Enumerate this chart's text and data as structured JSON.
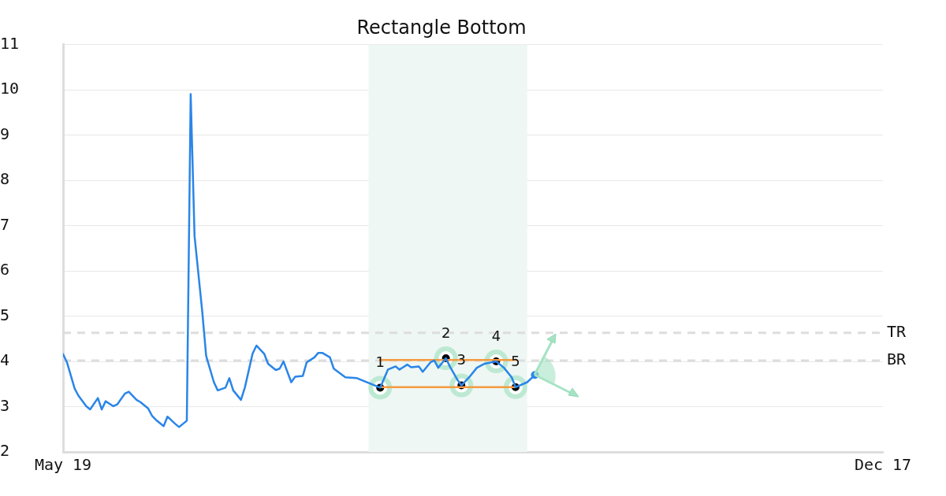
{
  "chart_data": {
    "type": "line",
    "title": "Rectangle Bottom",
    "xlim": [
      "--05-19",
      "--12-17"
    ],
    "xticks": [
      {
        "value": "--05-19",
        "label": "May 19"
      },
      {
        "value": "--12-17",
        "label": "Dec 17"
      }
    ],
    "ylim": [
      2,
      11
    ],
    "yticks": [
      2,
      3,
      4,
      5,
      6,
      7,
      8,
      9,
      10,
      11
    ],
    "grid": "y",
    "legend": false,
    "bands": [
      {
        "axis": "x",
        "from": "--08-06",
        "to": "--09-16",
        "color": "#eef7f3"
      }
    ],
    "ref_lines": [
      {
        "axis": "y",
        "value": 4.63,
        "label": "TR",
        "color": "#dddddd",
        "line_style": "dashed"
      },
      {
        "axis": "y",
        "value": 4.02,
        "label": "BR",
        "color": "#dddddd",
        "line_style": "dashed"
      }
    ],
    "annotations": [
      {
        "text": "1",
        "x": "--08-09",
        "y": 3.42
      },
      {
        "text": "2",
        "x": "--08-26",
        "y": 4.07
      },
      {
        "text": "3",
        "x": "--08-30",
        "y": 3.47
      },
      {
        "text": "4",
        "x": "--09-08",
        "y": 4.0
      },
      {
        "text": "5",
        "x": "--09-13",
        "y": 3.43
      }
    ],
    "series": [
      {
        "color": "#2a85e8",
        "marker": "none",
        "x": [
          "--05-19",
          "--05-20",
          "--05-22",
          "--05-23",
          "--05-25",
          "--05-26",
          "--05-28",
          "--05-29",
          "--05-30",
          "--06-01",
          "--06-02",
          "--06-04",
          "--06-05",
          "--06-07",
          "--06-08",
          "--06-10",
          "--06-11",
          "--06-12",
          "--06-14",
          "--06-15",
          "--06-17",
          "--06-18",
          "--06-20",
          "--06-21",
          "--06-22",
          "--06-24",
          "--06-25",
          "--06-27",
          "--06-28",
          "--06-30",
          "--07-01",
          "--07-02",
          "--07-04",
          "--07-05",
          "--07-07",
          "--07-08",
          "--07-10",
          "--07-11",
          "--07-13",
          "--07-14",
          "--07-15",
          "--07-17",
          "--07-18",
          "--07-20",
          "--07-21",
          "--07-23",
          "--07-24",
          "--07-25",
          "--07-27",
          "--07-28",
          "--07-31",
          "--08-03",
          "--08-05",
          "--08-07",
          "--08-09",
          "--08-11",
          "--08-13",
          "--08-14",
          "--08-16",
          "--08-17",
          "--08-19",
          "--08-20",
          "--08-22",
          "--08-23",
          "--08-24",
          "--08-26",
          "--08-27",
          "--08-29",
          "--08-30",
          "--09-01",
          "--09-03",
          "--09-05",
          "--09-08",
          "--09-10",
          "--09-12",
          "--09-13",
          "--09-16",
          "--09-18"
        ],
        "values": [
          4.16,
          3.98,
          3.4,
          3.24,
          3.01,
          2.94,
          3.19,
          2.94,
          3.12,
          3.01,
          3.05,
          3.29,
          3.33,
          3.15,
          3.1,
          2.96,
          2.8,
          2.71,
          2.57,
          2.78,
          2.62,
          2.55,
          2.69,
          9.91,
          6.77,
          5.09,
          4.12,
          3.54,
          3.36,
          3.42,
          3.63,
          3.36,
          3.15,
          3.42,
          4.17,
          4.35,
          4.17,
          3.95,
          3.81,
          3.84,
          4.0,
          3.54,
          3.66,
          3.68,
          3.98,
          4.09,
          4.19,
          4.19,
          4.09,
          3.84,
          3.65,
          3.63,
          3.56,
          3.49,
          3.42,
          3.82,
          3.89,
          3.82,
          3.93,
          3.87,
          3.89,
          3.77,
          3.98,
          4.02,
          3.86,
          4.07,
          3.89,
          3.59,
          3.47,
          3.65,
          3.86,
          3.95,
          4.0,
          3.86,
          3.65,
          3.43,
          3.54,
          3.7
        ]
      },
      {
        "color": "#f59a40",
        "marker": "none",
        "x": [
          "--08-09",
          "--09-13"
        ],
        "values": [
          4.03,
          4.03
        ]
      },
      {
        "color": "#f59a40",
        "marker": "none",
        "x": [
          "--08-09",
          "--09-13"
        ],
        "values": [
          3.43,
          3.43
        ]
      },
      {
        "type": "scatter",
        "color": "#000000",
        "marker": "circle",
        "x": [
          "--08-09",
          "--08-26",
          "--08-30",
          "--09-08",
          "--09-13"
        ],
        "values": [
          3.42,
          4.07,
          3.47,
          4.0,
          3.43
        ]
      },
      {
        "type": "scatter",
        "color": "#2a85e8",
        "marker": "circle",
        "x": [
          "--09-18"
        ],
        "values": [
          3.7
        ]
      }
    ]
  }
}
